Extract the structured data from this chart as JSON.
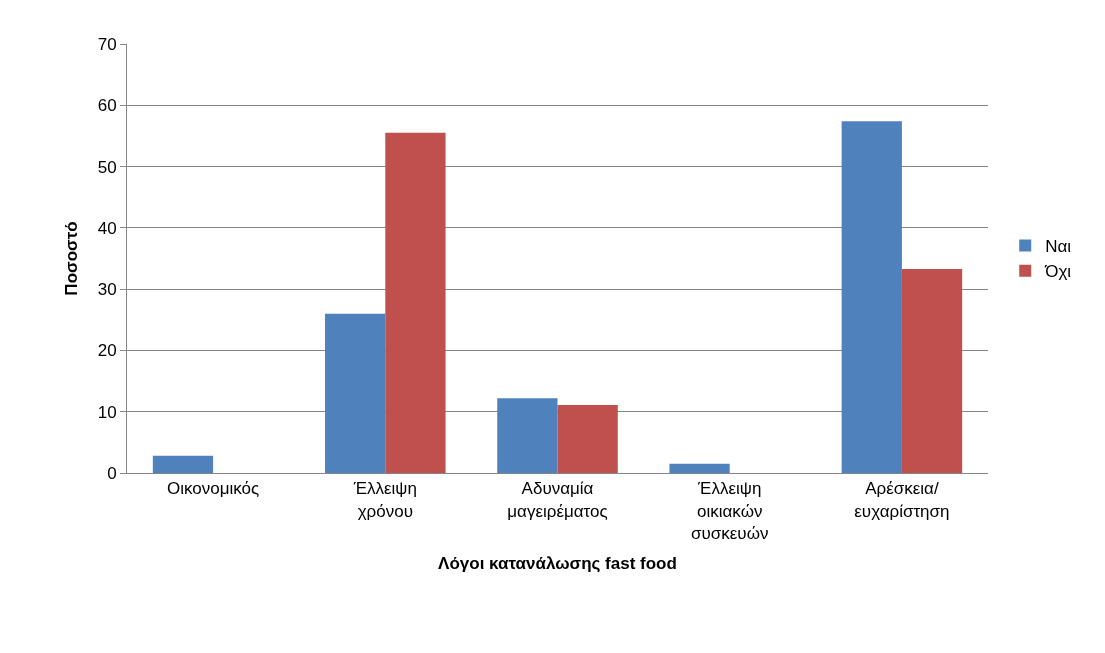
{
  "chart_data": {
    "type": "bar",
    "xlabel": "Λόγοι κατανάλωσης fast food",
    "ylabel": "Ποσοστό",
    "categories": [
      "Οικονομικός",
      "Έλλειψη χρόνου",
      "Αδυναμία μαγειρέματος",
      "Έλλειψη οικιακών συσκευών",
      "Αρέσκεια/ ευχαρίστηση"
    ],
    "series": [
      {
        "name": "Ναι",
        "color": "#4f81bd",
        "values": [
          2.8,
          26,
          12.2,
          1.5,
          57.4
        ]
      },
      {
        "name": "Όχι",
        "color": "#c0504d",
        "values": [
          0,
          55.5,
          11.1,
          0,
          33.3
        ]
      }
    ],
    "ylim": [
      0,
      70
    ],
    "yticks": [
      0,
      10,
      20,
      30,
      40,
      50,
      60,
      70
    ],
    "grid": "y",
    "legend": "right"
  }
}
